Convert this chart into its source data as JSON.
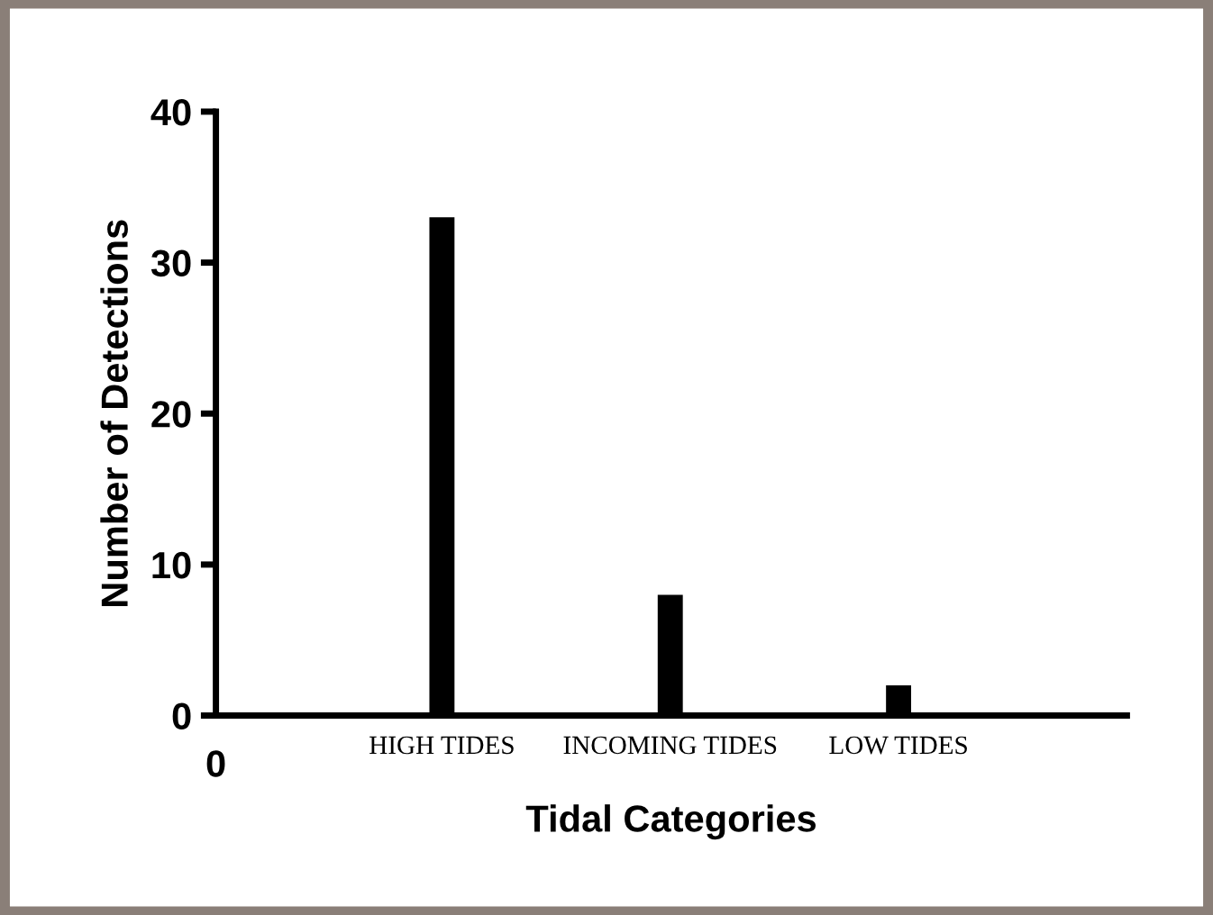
{
  "chart_data": {
    "type": "bar",
    "xlabel": "Tidal Categories",
    "ylabel": "Number of Detections",
    "categories": [
      "HIGH TIDES",
      "INCOMING TIDES",
      "LOW TIDES"
    ],
    "values": [
      33,
      8,
      2
    ],
    "color": "#000000",
    "ylim": [
      0,
      40
    ],
    "yticks": [
      0,
      10,
      20,
      30,
      40
    ],
    "grid": false,
    "legend": false,
    "annotations": [
      "0"
    ]
  }
}
